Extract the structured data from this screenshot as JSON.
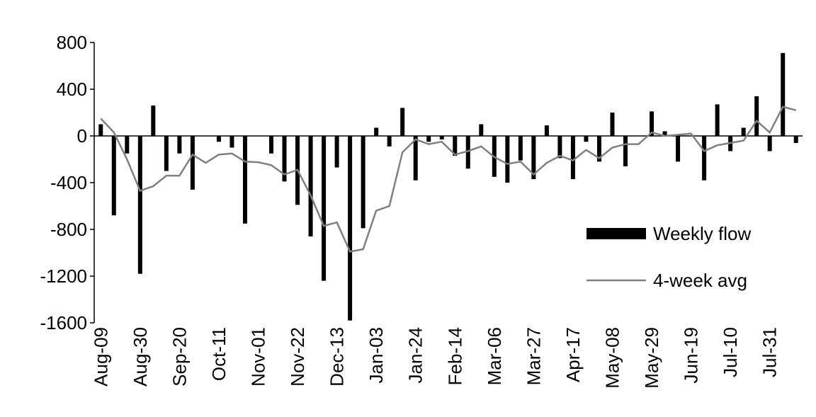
{
  "chart_data": {
    "type": "bar-line",
    "categories": [
      "Aug-09",
      null,
      null,
      "Aug-30",
      null,
      null,
      "Sep-20",
      null,
      null,
      "Oct-11",
      null,
      null,
      "Nov-01",
      null,
      null,
      "Nov-22",
      null,
      null,
      "Dec-13",
      null,
      null,
      "Jan-03",
      null,
      null,
      "Jan-24",
      null,
      null,
      "Feb-14",
      null,
      null,
      "Mar-06",
      null,
      null,
      "Mar-27",
      null,
      null,
      "Apr-17",
      null,
      null,
      "May-08",
      null,
      null,
      "May-29",
      null,
      null,
      "Jun-19",
      null,
      null,
      "Jul-10",
      null,
      null,
      "Jul-31",
      null,
      null
    ],
    "series": [
      {
        "name": "Weekly flow",
        "kind": "bar",
        "color": "#000000",
        "values": [
          100,
          -680,
          -150,
          -1180,
          260,
          -300,
          -150,
          -460,
          0,
          -50,
          -100,
          -750,
          0,
          -150,
          -390,
          -590,
          -860,
          -1240,
          -270,
          -1580,
          -790,
          70,
          -90,
          240,
          -380,
          -50,
          -30,
          -170,
          -280,
          100,
          -350,
          -400,
          -210,
          -370,
          90,
          -190,
          -370,
          -50,
          -220,
          200,
          -260,
          0,
          210,
          40,
          -220,
          0,
          -380,
          270,
          -130,
          70,
          340,
          -130,
          710,
          -60
        ]
      },
      {
        "name": "4-week avg",
        "kind": "line",
        "color": "#808080",
        "values": [
          150,
          30,
          -200,
          -470,
          -430,
          -340,
          -340,
          -160,
          -230,
          -160,
          -150,
          -220,
          -225,
          -250,
          -330,
          -290,
          -510,
          -770,
          -740,
          -990,
          -970,
          -640,
          -600,
          -140,
          -30,
          -70,
          -50,
          -160,
          -130,
          -90,
          -180,
          -240,
          -220,
          -330,
          -230,
          -170,
          -210,
          -120,
          -190,
          -100,
          -70,
          -70,
          30,
          0,
          10,
          20,
          -130,
          -80,
          -60,
          -40,
          130,
          30,
          250,
          220
        ]
      }
    ],
    "ylim": [
      -1600,
      800
    ],
    "yticks": [
      -1600,
      -1200,
      -800,
      -400,
      0,
      400,
      800
    ],
    "legend": "right"
  }
}
